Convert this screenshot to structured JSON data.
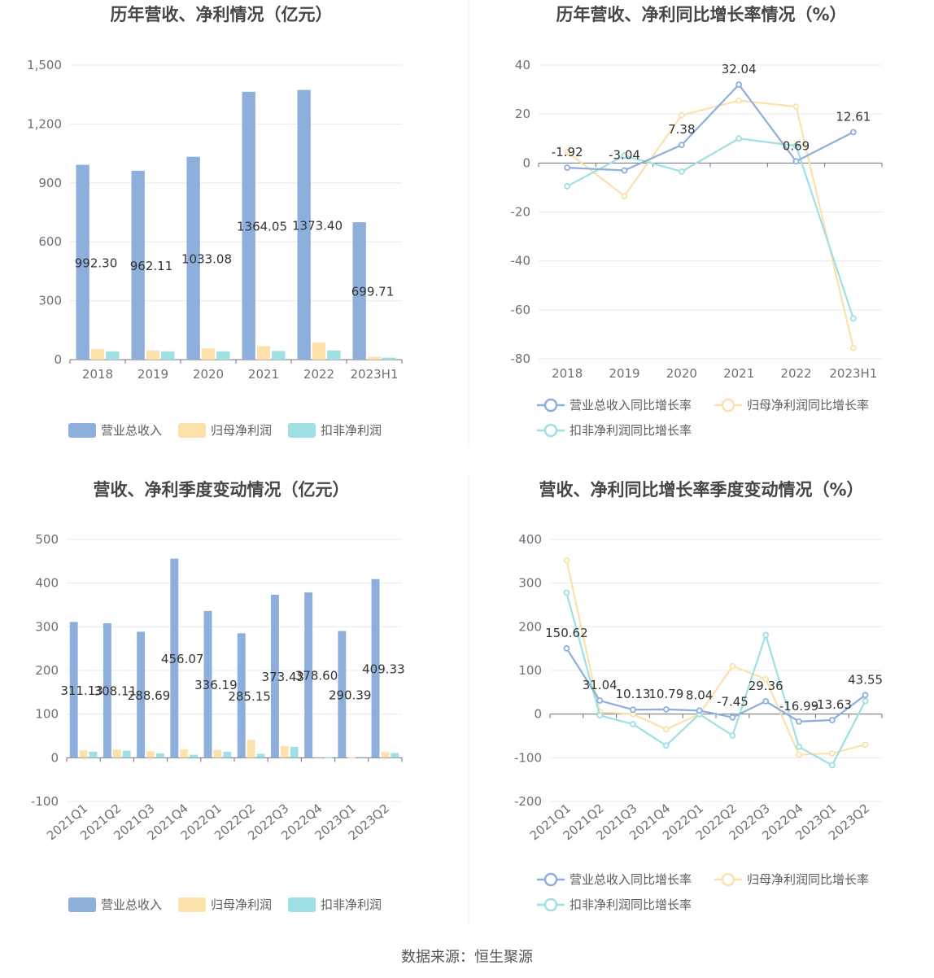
{
  "colors": {
    "revenue": "#8eaedc",
    "parent_profit": "#fde1aa",
    "deducted_profit": "#9ee0e3",
    "grid": "#e6e9f2",
    "axis": "#6e7079"
  },
  "source_text": "数据来源：恒生聚源",
  "chart_data": [
    {
      "id": "annual",
      "type": "bar",
      "title": "历年营收、净利情况（亿元）",
      "categories": [
        "2018",
        "2019",
        "2020",
        "2021",
        "2022",
        "2023H1"
      ],
      "ylim": [
        0,
        1500
      ],
      "yticks": [
        0,
        300,
        600,
        900,
        1200,
        1500
      ],
      "yticklabels": [
        "0",
        "300",
        "600",
        "900",
        "1,200",
        "1,500"
      ],
      "series": [
        {
          "name": "营业总收入",
          "values": [
            992.3,
            962.11,
            1033.08,
            1364.05,
            1373.4,
            699.71
          ],
          "labels": [
            "992.30",
            "962.11",
            "1033.08",
            "1364.05",
            "1373.40",
            "699.71"
          ]
        },
        {
          "name": "归母净利润",
          "values": [
            54,
            47,
            57,
            69,
            87,
            14
          ],
          "labels": null
        },
        {
          "name": "扣非净利润",
          "values": [
            42,
            42,
            42,
            44,
            47,
            10
          ],
          "labels": null
        }
      ],
      "legend": [
        "营业总收入",
        "归母净利润",
        "扣非净利润"
      ]
    },
    {
      "id": "annual_growth",
      "type": "line",
      "title": "历年营收、净利同比增长率情况（%）",
      "categories": [
        "2018",
        "2019",
        "2020",
        "2021",
        "2022",
        "2023H1"
      ],
      "ylim": [
        -80,
        40
      ],
      "yticks": [
        -80,
        -60,
        -40,
        -20,
        0,
        20,
        40
      ],
      "yticklabels": [
        "-80",
        "-60",
        "-40",
        "-20",
        "0",
        "20",
        "40"
      ],
      "series": [
        {
          "name": "营业总收入同比增长率",
          "values": [
            -1.92,
            -3.04,
            7.38,
            32.04,
            0.69,
            12.61
          ],
          "labels": [
            "-1.92",
            "-3.04",
            "7.38",
            "32.04",
            "0.69",
            "12.61"
          ]
        },
        {
          "name": "归母净利润同比增长率",
          "values": [
            4.5,
            -13.5,
            19.5,
            25.5,
            23,
            -75.5
          ],
          "labels": null
        },
        {
          "name": "扣非净利润同比增长率",
          "values": [
            -9.5,
            3,
            -3.5,
            10,
            7,
            -63.5
          ],
          "labels": null
        }
      ],
      "legend": [
        "营业总收入同比增长率",
        "归母净利润同比增长率",
        "扣非净利润同比增长率"
      ]
    },
    {
      "id": "quarterly",
      "type": "bar",
      "title": "营收、净利季度变动情况（亿元）",
      "categories": [
        "2021Q1",
        "2021Q2",
        "2021Q3",
        "2021Q4",
        "2022Q1",
        "2022Q2",
        "2022Q3",
        "2022Q4",
        "2023Q1",
        "2023Q2"
      ],
      "ylim": [
        -100,
        500
      ],
      "yticks": [
        -100,
        0,
        100,
        200,
        300,
        400,
        500
      ],
      "yticklabels": [
        "-100",
        "0",
        "100",
        "200",
        "300",
        "400",
        "500"
      ],
      "series": [
        {
          "name": "营业总收入",
          "values": [
            311.13,
            308.11,
            288.69,
            456.07,
            336.19,
            285.15,
            373.43,
            378.6,
            290.39,
            409.33
          ],
          "labels": [
            "311.13",
            "308.11",
            "288.69",
            "456.07",
            "336.19",
            "285.15",
            "373.43",
            "378.60",
            "290.39",
            "409.33"
          ]
        },
        {
          "name": "归母净利润",
          "values": [
            17,
            19,
            15,
            19,
            18,
            41,
            27,
            2,
            1,
            13
          ],
          "labels": null
        },
        {
          "name": "扣非净利润",
          "values": [
            14,
            16,
            10,
            7,
            14,
            9,
            25,
            1,
            2,
            11
          ],
          "labels": null
        }
      ],
      "legend": [
        "营业总收入",
        "归母净利润",
        "扣非净利润"
      ]
    },
    {
      "id": "quarterly_growth",
      "type": "line",
      "title": "营收、净利同比增长率季度变动情况（%）",
      "categories": [
        "2021Q1",
        "2021Q2",
        "2021Q3",
        "2021Q4",
        "2022Q1",
        "2022Q2",
        "2022Q3",
        "2022Q4",
        "2023Q1",
        "2023Q2"
      ],
      "ylim": [
        -200,
        400
      ],
      "yticks": [
        -200,
        -100,
        0,
        100,
        200,
        300,
        400
      ],
      "yticklabels": [
        "-200",
        "-100",
        "0",
        "100",
        "200",
        "300",
        "400"
      ],
      "series": [
        {
          "name": "营业总收入同比增长率",
          "values": [
            150.62,
            31.04,
            10.13,
            10.79,
            8.04,
            -7.45,
            29.36,
            -16.99,
            -13.63,
            43.55
          ],
          "labels": [
            "150.62",
            "31.04",
            "10.13",
            "10.79",
            "8.04",
            "-7.45",
            "29.36",
            "-16.99",
            "-13.63",
            "43.55"
          ]
        },
        {
          "name": "归母净利润同比增长率",
          "values": [
            352,
            5,
            0,
            -35,
            0,
            110,
            80,
            -93,
            -90,
            -70
          ],
          "labels": null
        },
        {
          "name": "扣非净利润同比增长率",
          "values": [
            278,
            -3,
            -23,
            -72,
            0,
            -49,
            181,
            -75,
            -117,
            30
          ],
          "labels": null
        }
      ],
      "legend": [
        "营业总收入同比增长率",
        "归母净利润同比增长率",
        "扣非净利润同比增长率"
      ]
    }
  ]
}
